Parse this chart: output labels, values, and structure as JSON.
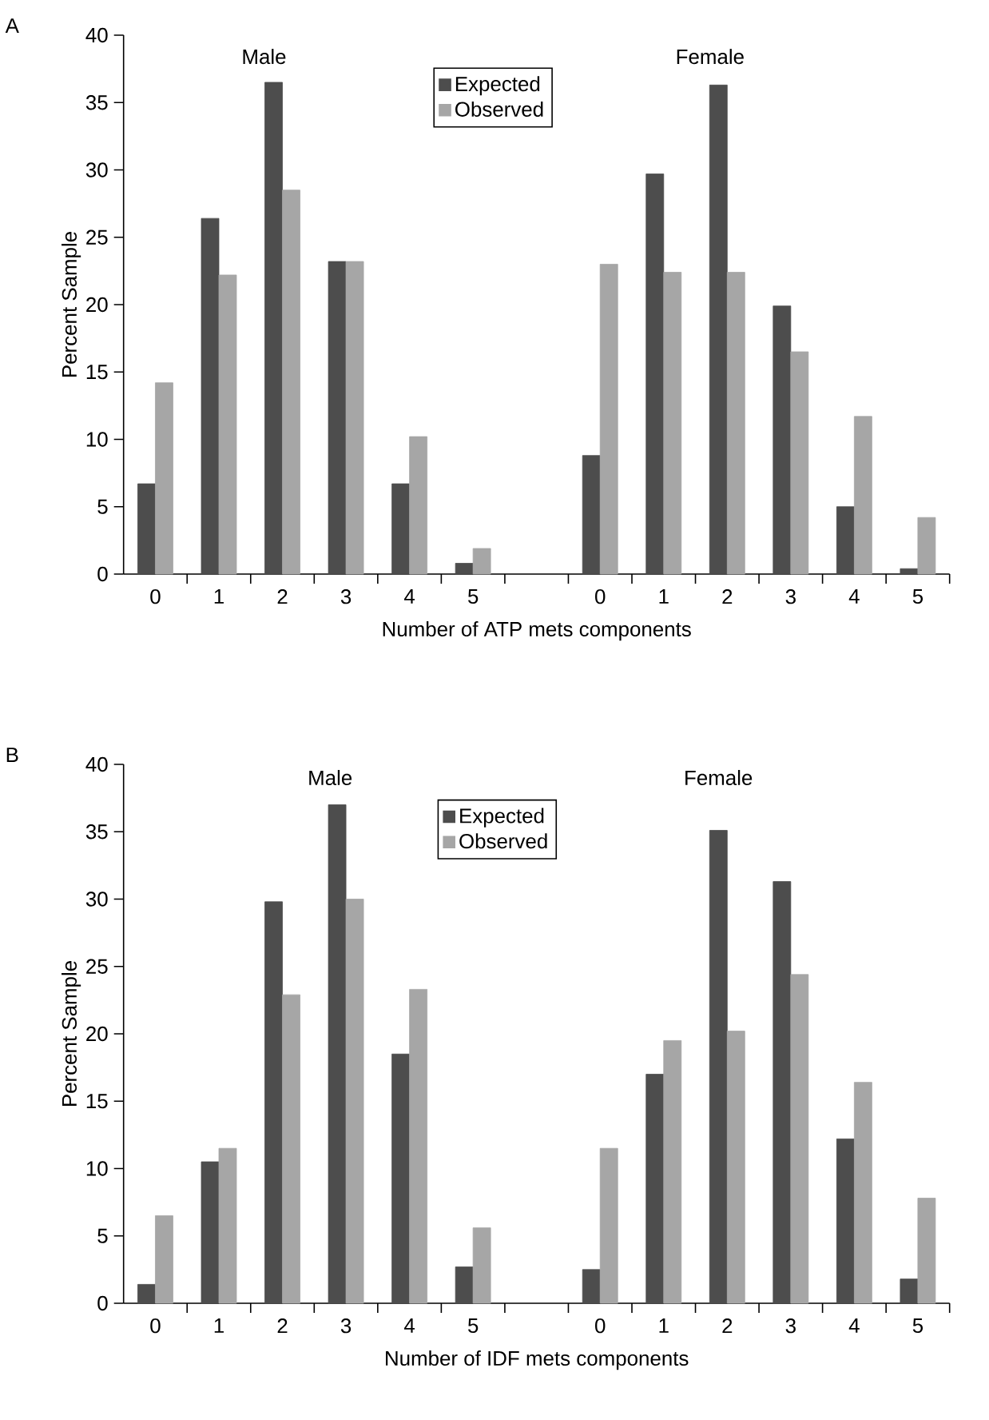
{
  "chart_data": [
    {
      "type": "bar",
      "title": "A",
      "xlabel": "Number of ATP mets components",
      "ylabel": "Percent Sample",
      "annotations": [
        "Male",
        "Female"
      ],
      "categories": [
        "0",
        "1",
        "2",
        "3",
        "4",
        "5",
        null,
        "0",
        "1",
        "2",
        "3",
        "4",
        "5"
      ],
      "ylim": [
        0,
        40
      ],
      "yticks": [
        0,
        5,
        10,
        15,
        20,
        25,
        30,
        35,
        40
      ],
      "legend": "top",
      "series": [
        {
          "name": "Expected",
          "color": "#4d4d4d",
          "values": [
            6.7,
            26.4,
            36.5,
            23.2,
            6.7,
            0.8,
            null,
            8.8,
            29.7,
            36.3,
            19.9,
            5.0,
            0.4
          ]
        },
        {
          "name": "Observed",
          "color": "#a6a6a6",
          "values": [
            14.2,
            22.2,
            28.5,
            23.2,
            10.2,
            1.9,
            null,
            23.0,
            22.4,
            22.4,
            16.5,
            11.7,
            4.2
          ]
        }
      ]
    },
    {
      "type": "bar",
      "title": "B",
      "xlabel": "Number of IDF mets components",
      "ylabel": "Percent Sample",
      "annotations": [
        "Male",
        "Female"
      ],
      "categories": [
        "0",
        "1",
        "2",
        "3",
        "4",
        "5",
        null,
        "0",
        "1",
        "2",
        "3",
        "4",
        "5"
      ],
      "ylim": [
        0,
        40
      ],
      "yticks": [
        0,
        5,
        10,
        15,
        20,
        25,
        30,
        35,
        40
      ],
      "legend": "top",
      "series": [
        {
          "name": "Expected",
          "color": "#4d4d4d",
          "values": [
            1.4,
            10.5,
            29.8,
            37.0,
            18.5,
            2.7,
            null,
            2.5,
            17.0,
            35.1,
            31.3,
            12.2,
            1.8
          ]
        },
        {
          "name": "Observed",
          "color": "#a6a6a6",
          "values": [
            6.5,
            11.5,
            22.9,
            30.0,
            23.3,
            5.6,
            null,
            11.5,
            19.5,
            20.2,
            24.4,
            16.4,
            7.8
          ]
        }
      ]
    }
  ]
}
